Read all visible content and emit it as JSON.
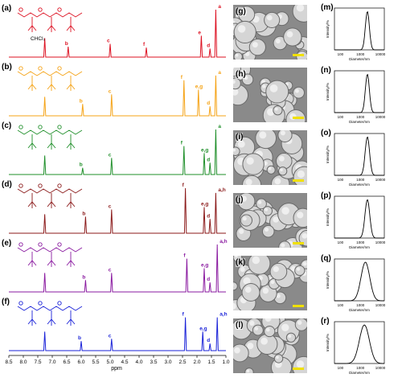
{
  "panels": {
    "nmr": [
      {
        "label": "(a)",
        "color": "#dd1122",
        "chcl3": "CHCl₃",
        "peaks": [
          "a",
          "b",
          "c",
          "d",
          "e",
          "f"
        ]
      },
      {
        "label": "(b)",
        "color": "#f5a316",
        "peaks": [
          "a",
          "b",
          "c",
          "d",
          "e,g",
          "f"
        ]
      },
      {
        "label": "(c)",
        "color": "#1f8f2a",
        "peaks": [
          "a",
          "b",
          "c",
          "d",
          "e,g",
          "f"
        ]
      },
      {
        "label": "(d)",
        "color": "#8b1a1a",
        "peaks": [
          "a,h",
          "b",
          "c",
          "d",
          "e,g",
          "f"
        ]
      },
      {
        "label": "(e)",
        "color": "#8a1aa0",
        "peaks": [
          "a,h",
          "b",
          "c",
          "d",
          "e,g",
          "f"
        ]
      },
      {
        "label": "(f)",
        "color": "#1a22d8",
        "peaks": [
          "a,h",
          "b",
          "c",
          "d",
          "e,g",
          "f"
        ]
      }
    ],
    "sem": [
      "(g)",
      "(h)",
      "(i)",
      "(j)",
      "(k)",
      "(l)"
    ],
    "dls": [
      "(m)",
      "(n)",
      "(o)",
      "(p)",
      "(q)",
      "(r)"
    ]
  },
  "nmr_axis": {
    "ticks": [
      "8.5",
      "8.0",
      "7.5",
      "7.0",
      "6.5",
      "6.0",
      "5.5",
      "5.0",
      "4.5",
      "4.0",
      "3.5",
      "3.0",
      "2.5",
      "2.0",
      "1.5",
      "1.0"
    ],
    "label": "ppm"
  },
  "dls_axis": {
    "ylabel": "Intensity/%",
    "xlabel": "Diameter/nm",
    "xticks": [
      "100",
      "1000",
      "10000"
    ]
  }
}
